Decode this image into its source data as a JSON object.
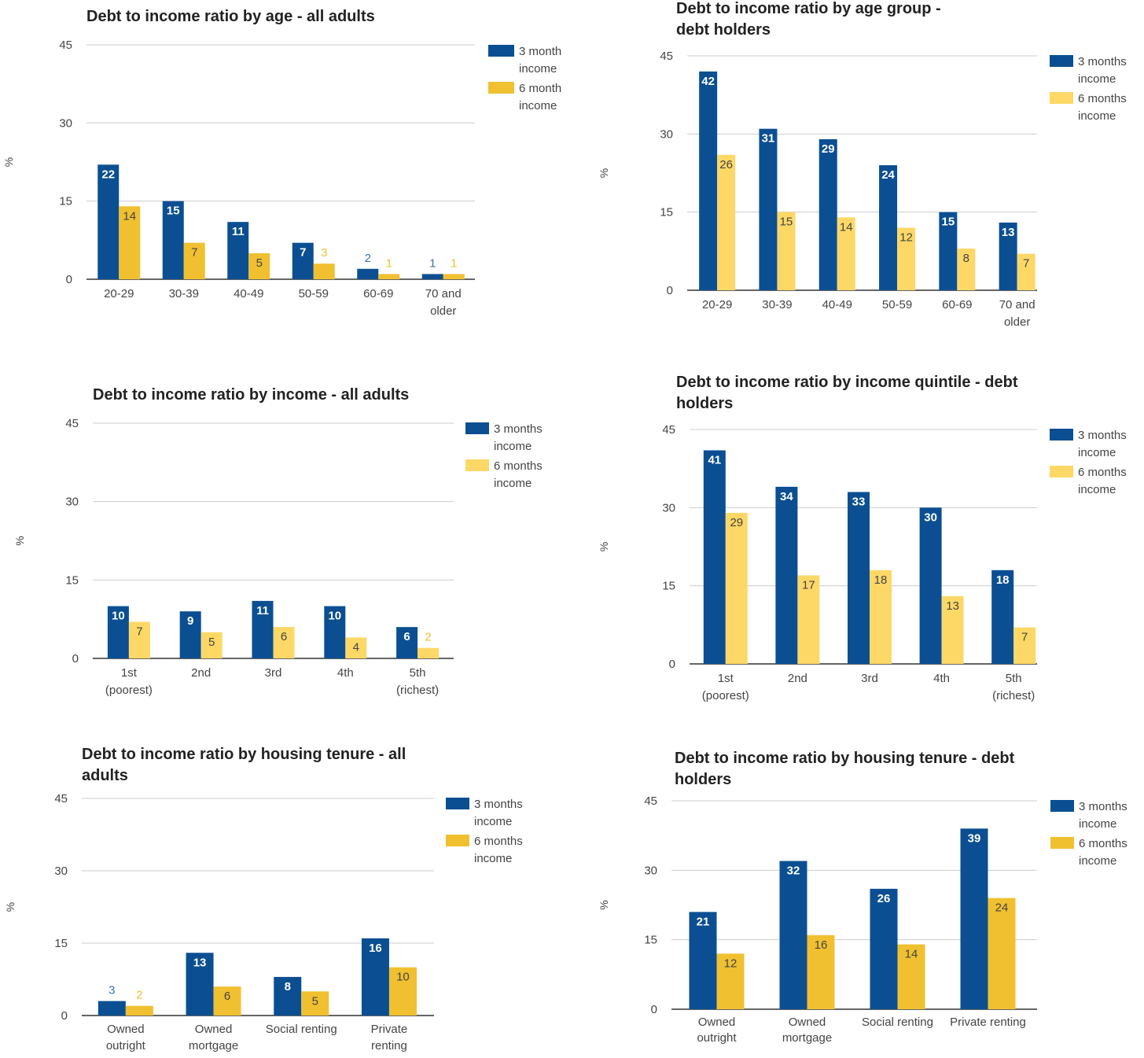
{
  "chart_data": [
    {
      "type": "bar",
      "title": "Debt to income ratio by age - all adults",
      "ylabel": "%",
      "ylim": [
        0,
        45
      ],
      "yticks": [
        "0",
        "15",
        "30",
        "45"
      ],
      "categories": [
        "20-29",
        "30-39",
        "40-49",
        "50-59",
        "60-69",
        "70 and older"
      ],
      "series": [
        {
          "name": "3 month income",
          "values": [
            22,
            15,
            11,
            7,
            2,
            1
          ]
        },
        {
          "name": "6 month income",
          "values": [
            14,
            7,
            5,
            3,
            1,
            1
          ]
        }
      ],
      "colors": [
        "#0b4f92",
        "#f0c030"
      ],
      "legend": "right",
      "grid": true
    },
    {
      "type": "bar",
      "title": "Debt to income ratio by age group - debt holders",
      "ylabel": "%",
      "ylim": [
        0,
        45
      ],
      "yticks": [
        "0",
        "15",
        "30",
        "45"
      ],
      "categories": [
        "20-29",
        "30-39",
        "40-49",
        "50-59",
        "60-69",
        "70 and older"
      ],
      "series": [
        {
          "name": "3 months income",
          "values": [
            42,
            31,
            29,
            24,
            15,
            13
          ]
        },
        {
          "name": "6 months income",
          "values": [
            26,
            15,
            14,
            12,
            8,
            7
          ]
        }
      ],
      "colors": [
        "#0b4f92",
        "#fdd866"
      ],
      "legend": "right",
      "grid": true
    },
    {
      "type": "bar",
      "title": "Debt to income ratio by income - all adults",
      "ylabel": "%",
      "ylim": [
        0,
        45
      ],
      "yticks": [
        "0",
        "15",
        "30",
        "45"
      ],
      "categories": [
        "1st (poorest)",
        "2nd",
        "3rd",
        "4th",
        "5th (richest)"
      ],
      "series": [
        {
          "name": "3 months income",
          "values": [
            10,
            9,
            11,
            10,
            6
          ]
        },
        {
          "name": "6 months income",
          "values": [
            7,
            5,
            6,
            4,
            2
          ]
        }
      ],
      "colors": [
        "#0b4f92",
        "#fdd866"
      ],
      "legend": "right",
      "grid": true
    },
    {
      "type": "bar",
      "title": "Debt to income ratio by income quintile - debt holders",
      "ylabel": "%",
      "ylim": [
        0,
        45
      ],
      "yticks": [
        "0",
        "15",
        "30",
        "45"
      ],
      "categories": [
        "1st (poorest)",
        "2nd",
        "3rd",
        "4th",
        "5th (richest)"
      ],
      "series": [
        {
          "name": "3 months income",
          "values": [
            41,
            34,
            33,
            30,
            18
          ]
        },
        {
          "name": "6 months income",
          "values": [
            29,
            17,
            18,
            13,
            7
          ]
        }
      ],
      "colors": [
        "#0b4f92",
        "#fdd866"
      ],
      "legend": "right",
      "grid": true
    },
    {
      "type": "bar",
      "title": "Debt to income ratio by housing tenure - all adults",
      "ylabel": "%",
      "ylim": [
        0,
        45
      ],
      "yticks": [
        "0",
        "15",
        "30",
        "45"
      ],
      "categories": [
        "Owned outright",
        "Owned mortgage",
        "Social renting",
        "Private renting"
      ],
      "series": [
        {
          "name": "3 months income",
          "values": [
            3,
            13,
            8,
            16
          ]
        },
        {
          "name": "6 months income",
          "values": [
            2,
            6,
            5,
            10
          ]
        }
      ],
      "colors": [
        "#0b4f92",
        "#f0c030"
      ],
      "legend": "right",
      "grid": true
    },
    {
      "type": "bar",
      "title": "Debt to income ratio by housing tenure - debt holders",
      "ylabel": "%",
      "ylim": [
        0,
        45
      ],
      "yticks": [
        "0",
        "15",
        "30",
        "45"
      ],
      "categories": [
        "Owned outright",
        "Owned mortgage",
        "Social renting",
        "Private renting"
      ],
      "series": [
        {
          "name": "3 months income",
          "values": [
            21,
            32,
            26,
            39
          ]
        },
        {
          "name": "6 months income",
          "values": [
            12,
            16,
            14,
            24
          ]
        }
      ],
      "colors": [
        "#0b4f92",
        "#f0c030"
      ],
      "legend": "right",
      "grid": true
    }
  ]
}
